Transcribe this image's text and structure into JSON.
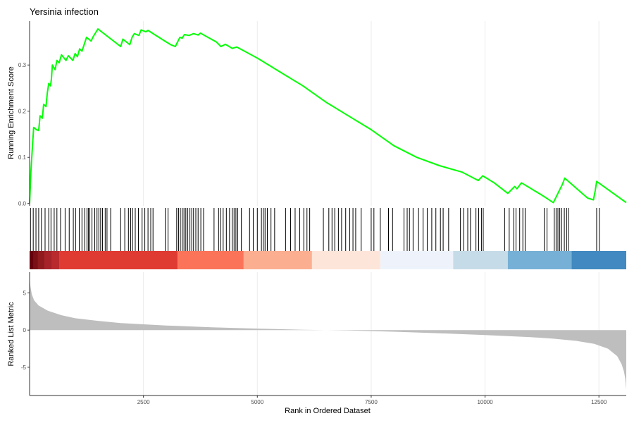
{
  "chart_data": {
    "type": "line",
    "title": "Yersinia infection",
    "x_axis": {
      "label": "Rank in Ordered Dataset",
      "range": [
        0,
        13100
      ],
      "ticks": [
        2500,
        5000,
        7500,
        10000,
        12500
      ],
      "tick_labels": [
        "2500",
        "5000",
        "7500",
        "10000",
        "12500"
      ],
      "grid": true
    },
    "panels": [
      {
        "id": "running-score",
        "ylabel": "Running Enrichment Score",
        "ylim": [
          -0.005,
          0.395
        ],
        "yticks": [
          0.0,
          0.1,
          0.2,
          0.3
        ],
        "ytick_labels": [
          "0.0",
          "0.1",
          "0.2",
          "0.3"
        ],
        "series": [
          {
            "color": "#00ff00",
            "points": [
              [
                0,
                0.0
              ],
              [
                30,
                0.07
              ],
              [
                60,
                0.12
              ],
              [
                90,
                0.165
              ],
              [
                150,
                0.16
              ],
              [
                200,
                0.158
              ],
              [
                230,
                0.19
              ],
              [
                280,
                0.185
              ],
              [
                310,
                0.215
              ],
              [
                360,
                0.21
              ],
              [
                390,
                0.24
              ],
              [
                420,
                0.26
              ],
              [
                460,
                0.255
              ],
              [
                480,
                0.27
              ],
              [
                500,
                0.3
              ],
              [
                560,
                0.29
              ],
              [
                600,
                0.31
              ],
              [
                650,
                0.305
              ],
              [
                700,
                0.322
              ],
              [
                800,
                0.31
              ],
              [
                850,
                0.32
              ],
              [
                950,
                0.31
              ],
              [
                1000,
                0.325
              ],
              [
                1050,
                0.318
              ],
              [
                1100,
                0.335
              ],
              [
                1150,
                0.33
              ],
              [
                1200,
                0.345
              ],
              [
                1250,
                0.36
              ],
              [
                1350,
                0.352
              ],
              [
                1400,
                0.362
              ],
              [
                1500,
                0.378
              ],
              [
                2000,
                0.34
              ],
              [
                2050,
                0.356
              ],
              [
                2200,
                0.344
              ],
              [
                2250,
                0.36
              ],
              [
                2300,
                0.368
              ],
              [
                2400,
                0.364
              ],
              [
                2450,
                0.376
              ],
              [
                2550,
                0.372
              ],
              [
                2600,
                0.375
              ],
              [
                3000,
                0.35
              ],
              [
                3100,
                0.344
              ],
              [
                3200,
                0.34
              ],
              [
                3250,
                0.35
              ],
              [
                3300,
                0.36
              ],
              [
                3350,
                0.358
              ],
              [
                3400,
                0.366
              ],
              [
                3500,
                0.364
              ],
              [
                3600,
                0.368
              ],
              [
                3700,
                0.365
              ],
              [
                3750,
                0.369
              ],
              [
                4100,
                0.35
              ],
              [
                4200,
                0.34
              ],
              [
                4300,
                0.345
              ],
              [
                4450,
                0.336
              ],
              [
                4550,
                0.339
              ],
              [
                5000,
                0.315
              ],
              [
                5500,
                0.285
              ],
              [
                6000,
                0.255
              ],
              [
                6500,
                0.22
              ],
              [
                7000,
                0.19
              ],
              [
                7500,
                0.16
              ],
              [
                8000,
                0.125
              ],
              [
                8500,
                0.1
              ],
              [
                9000,
                0.082
              ],
              [
                9500,
                0.068
              ],
              [
                9850,
                0.05
              ],
              [
                9950,
                0.06
              ],
              [
                10200,
                0.045
              ],
              [
                10500,
                0.022
              ],
              [
                10650,
                0.037
              ],
              [
                10700,
                0.032
              ],
              [
                10800,
                0.045
              ],
              [
                11300,
                0.015
              ],
              [
                11500,
                0.002
              ],
              [
                11600,
                0.022
              ],
              [
                11700,
                0.042
              ],
              [
                11750,
                0.055
              ],
              [
                12250,
                0.012
              ],
              [
                12380,
                0.008
              ],
              [
                12420,
                0.028
              ],
              [
                12450,
                0.048
              ],
              [
                13100,
                0.002
              ]
            ]
          }
        ]
      },
      {
        "id": "hit-ticks",
        "hit_positions": [
          20,
          80,
          140,
          200,
          260,
          340,
          420,
          470,
          540,
          600,
          680,
          780,
          870,
          960,
          1010,
          1090,
          1150,
          1210,
          1260,
          1290,
          1320,
          1370,
          1430,
          1480,
          1520,
          1560,
          1600,
          1660,
          1700,
          1780,
          2000,
          2090,
          2170,
          2220,
          2260,
          2320,
          2390,
          2470,
          2530,
          2600,
          2660,
          2710,
          2980,
          3040,
          3230,
          3270,
          3310,
          3350,
          3390,
          3430,
          3470,
          3520,
          3560,
          3600,
          3650,
          3700,
          3760,
          3820,
          4050,
          4150,
          4190,
          4250,
          4320,
          4390,
          4450,
          4490,
          4530,
          4570,
          4650,
          4830,
          4910,
          5000,
          5090,
          5130,
          5170,
          5220,
          5300,
          5380,
          5620,
          5730,
          5830,
          5930,
          6020,
          6090,
          6150,
          6450,
          6570,
          6640,
          6700,
          6780,
          6850,
          6940,
          7030,
          7100,
          7160,
          7280,
          7500,
          7560,
          7700,
          7880,
          7970,
          8220,
          8290,
          8340,
          8420,
          8540,
          8640,
          8730,
          8830,
          8920,
          9020,
          9080,
          9200,
          9460,
          9530,
          9620,
          9680,
          9800,
          9860,
          9920,
          9960,
          10430,
          10530,
          10630,
          10680,
          10760,
          10830,
          10880,
          11300,
          11360,
          11520,
          11560,
          11600,
          11640,
          11680,
          11740,
          11790,
          11830,
          12450,
          12510
        ]
      },
      {
        "id": "rank-bands",
        "bands": [
          {
            "from": 0,
            "to": 650,
            "color": "#8a1a1c"
          },
          {
            "from": 650,
            "to": 3250,
            "color": "#e03b32"
          },
          {
            "from": 3250,
            "to": 4700,
            "color": "#fb7459"
          },
          {
            "from": 4700,
            "to": 6200,
            "color": "#fcae91"
          },
          {
            "from": 6200,
            "to": 7700,
            "color": "#fee5d9"
          },
          {
            "from": 7700,
            "to": 9300,
            "color": "#eef3fb"
          },
          {
            "from": 9300,
            "to": 10500,
            "color": "#c6dbe8"
          },
          {
            "from": 10500,
            "to": 11900,
            "color": "#76b0d6"
          },
          {
            "from": 11900,
            "to": 13100,
            "color": "#4189c0"
          }
        ],
        "dark_red_shades": [
          {
            "from": 0,
            "to": 80,
            "color": "#67000d"
          },
          {
            "from": 80,
            "to": 180,
            "color": "#7a0f16"
          },
          {
            "from": 180,
            "to": 320,
            "color": "#8f1b1f"
          },
          {
            "from": 320,
            "to": 480,
            "color": "#a52329"
          },
          {
            "from": 480,
            "to": 650,
            "color": "#b82a2e"
          }
        ]
      },
      {
        "id": "ranked-metric",
        "ylabel": "Ranked List Metric",
        "ylim": [
          -8.8,
          7.8
        ],
        "yticks": [
          -5,
          0,
          5
        ],
        "ytick_labels": [
          "-5",
          "0",
          "5"
        ],
        "fill_color": "#bebebe",
        "curve": [
          [
            0,
            7.1
          ],
          [
            20,
            5.8
          ],
          [
            50,
            4.8
          ],
          [
            100,
            4.0
          ],
          [
            200,
            3.3
          ],
          [
            400,
            2.6
          ],
          [
            700,
            2.0
          ],
          [
            1000,
            1.6
          ],
          [
            1500,
            1.25
          ],
          [
            2000,
            0.95
          ],
          [
            3000,
            0.62
          ],
          [
            4000,
            0.38
          ],
          [
            5000,
            0.2
          ],
          [
            6000,
            0.05
          ],
          [
            6500,
            0.0
          ],
          [
            7000,
            -0.05
          ],
          [
            8000,
            -0.22
          ],
          [
            9000,
            -0.42
          ],
          [
            10000,
            -0.66
          ],
          [
            11000,
            -0.95
          ],
          [
            11500,
            -1.15
          ],
          [
            12000,
            -1.45
          ],
          [
            12400,
            -1.85
          ],
          [
            12700,
            -2.5
          ],
          [
            12900,
            -3.5
          ],
          [
            13000,
            -4.6
          ],
          [
            13050,
            -5.6
          ],
          [
            13080,
            -6.6
          ],
          [
            13100,
            -8.0
          ]
        ]
      }
    ]
  }
}
